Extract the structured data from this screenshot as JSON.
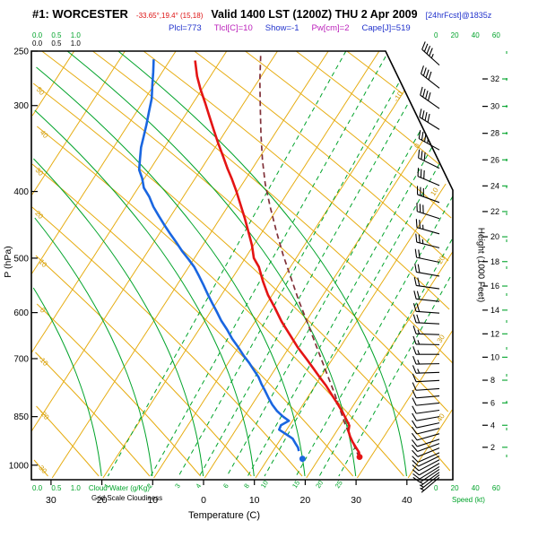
{
  "header": {
    "station": "#1: WORCESTER",
    "coords": "-33.65°,19.4° (15,18)",
    "valid": "Valid 1400 LST (1200Z) THU 2 Apr 2009",
    "fcst": "[24hrFcst]@1835z",
    "indices": {
      "plcl": "Plcl=773",
      "tlcl": "Tlcl[C]=10",
      "show": "Show=-1",
      "pw": "Pw[cm]=2",
      "cape": "Cape[J]=519"
    }
  },
  "scales": {
    "cloud_ticks": "0.0 0.5 1.0",
    "cloud_green_label": "Cloud Water (g/Kg)",
    "cloud_black_label": "Grid Scale Cloudiness",
    "speed_ticks": "0 20 40 60"
  },
  "chart_data": {
    "type": "skewt-logp-sounding",
    "title": "#1: WORCESTER",
    "valid": "Valid 1400 LST (1200Z) THU 2 Apr 2009",
    "indices": {
      "Plcl_hPa": 773,
      "Tlcl_C": 10,
      "Showalter": -1,
      "Pw_cm": 2,
      "Cape_J": 519
    },
    "pressure_axis": {
      "label": "P (hPa)",
      "range": [
        1050,
        250
      ],
      "ticks": [
        250,
        300,
        400,
        500,
        600,
        700,
        850,
        1000
      ]
    },
    "temperature_axis": {
      "label": "Temperature (C)",
      "ticks": [
        [
          -30,
          "30"
        ],
        [
          -20,
          "20"
        ],
        [
          -10,
          "10"
        ],
        [
          0,
          "0"
        ],
        [
          10,
          "10"
        ],
        [
          20,
          "20"
        ],
        [
          30,
          "30"
        ],
        [
          40,
          "40"
        ]
      ]
    },
    "height_axis": {
      "label": "Height (1000 Feet)",
      "ticks": [
        2,
        4,
        6,
        8,
        10,
        12,
        14,
        16,
        18,
        20,
        22,
        24,
        26,
        28,
        30,
        32
      ]
    },
    "speed_axis": {
      "label": "Speed (kt)",
      "ticks": [
        0,
        20,
        40,
        60
      ]
    },
    "temperature_profile": [
      [
        258,
        -55.0
      ],
      [
        272,
        -52.6
      ],
      [
        284,
        -50.3
      ],
      [
        297,
        -47.7
      ],
      [
        311,
        -45.1
      ],
      [
        325,
        -42.6
      ],
      [
        340,
        -40.0
      ],
      [
        355,
        -37.4
      ],
      [
        371,
        -34.8
      ],
      [
        383,
        -32.8
      ],
      [
        400,
        -30.2
      ],
      [
        419,
        -27.6
      ],
      [
        438,
        -25.1
      ],
      [
        458,
        -22.7
      ],
      [
        479,
        -20.3
      ],
      [
        500,
        -18.3
      ],
      [
        515,
        -16.2
      ],
      [
        540,
        -13.6
      ],
      [
        565,
        -10.9
      ],
      [
        590,
        -7.9
      ],
      [
        618,
        -4.8
      ],
      [
        646,
        -1.5
      ],
      [
        675,
        1.8
      ],
      [
        700,
        4.8
      ],
      [
        722,
        7.3
      ],
      [
        744,
        9.7
      ],
      [
        766,
        12.1
      ],
      [
        792,
        14.6
      ],
      [
        813,
        16.6
      ],
      [
        838,
        18.8
      ],
      [
        858,
        20.4
      ],
      [
        876,
        21.8
      ],
      [
        892,
        22.3
      ],
      [
        908,
        23.3
      ],
      [
        925,
        24.5
      ],
      [
        944,
        26.0
      ],
      [
        958,
        27.1
      ],
      [
        973,
        27.8
      ]
    ],
    "dewpoint_profile": [
      [
        257,
        -63.3
      ],
      [
        268,
        -61.8
      ],
      [
        280,
        -60.3
      ],
      [
        293,
        -58.7
      ],
      [
        307,
        -57.5
      ],
      [
        320,
        -56.4
      ],
      [
        332,
        -55.5
      ],
      [
        345,
        -54.6
      ],
      [
        359,
        -53.3
      ],
      [
        372,
        -52.1
      ],
      [
        383,
        -50.4
      ],
      [
        395,
        -48.9
      ],
      [
        407,
        -46.7
      ],
      [
        421,
        -44.6
      ],
      [
        434,
        -42.4
      ],
      [
        447,
        -40.2
      ],
      [
        460,
        -38.0
      ],
      [
        474,
        -35.6
      ],
      [
        489,
        -33.2
      ],
      [
        502,
        -31.0
      ],
      [
        515,
        -28.9
      ],
      [
        531,
        -26.8
      ],
      [
        547,
        -24.8
      ],
      [
        564,
        -22.8
      ],
      [
        581,
        -20.8
      ],
      [
        598,
        -18.8
      ],
      [
        617,
        -16.7
      ],
      [
        635,
        -14.5
      ],
      [
        655,
        -12.3
      ],
      [
        674,
        -10.0
      ],
      [
        693,
        -7.9
      ],
      [
        710,
        -5.9
      ],
      [
        727,
        -4.1
      ],
      [
        744,
        -2.3
      ],
      [
        763,
        -0.7
      ],
      [
        781,
        0.9
      ],
      [
        800,
        2.5
      ],
      [
        817,
        4.0
      ],
      [
        834,
        5.7
      ],
      [
        850,
        7.6
      ],
      [
        862,
        9.3
      ],
      [
        875,
        8.3
      ],
      [
        888,
        8.5
      ],
      [
        902,
        10.5
      ],
      [
        915,
        12.3
      ],
      [
        929,
        13.4
      ],
      [
        943,
        14.5
      ],
      [
        954,
        15.1
      ]
    ],
    "parcel_path": [
      [
        254,
        -42.7
      ],
      [
        276,
        -39.7
      ],
      [
        302,
        -36.2
      ],
      [
        330,
        -32.7
      ],
      [
        360,
        -29.1
      ],
      [
        390,
        -25.5
      ],
      [
        422,
        -21.5
      ],
      [
        457,
        -17.3
      ],
      [
        496,
        -12.8
      ],
      [
        535,
        -8.4
      ],
      [
        577,
        -4.0
      ],
      [
        621,
        0.5
      ],
      [
        668,
        4.9
      ],
      [
        721,
        9.5
      ],
      [
        788,
        14.9
      ],
      [
        875,
        21.0
      ],
      [
        975,
        27.8
      ]
    ],
    "surface_markers": {
      "temperature": [
        973,
        27.8
      ],
      "dewpoint": [
        979,
        16.8
      ]
    },
    "winds": [
      [
        1042,
        230,
        5
      ],
      [
        1033,
        232,
        5
      ],
      [
        1024,
        234,
        5
      ],
      [
        1014,
        236,
        8
      ],
      [
        1005,
        238,
        8
      ],
      [
        994,
        240,
        10
      ],
      [
        982,
        242,
        10
      ],
      [
        970,
        244,
        10
      ],
      [
        959,
        246,
        10
      ],
      [
        944,
        248,
        10
      ],
      [
        930,
        250,
        10
      ],
      [
        917,
        252,
        10
      ],
      [
        900,
        254,
        10
      ],
      [
        884,
        256,
        10
      ],
      [
        868,
        258,
        10
      ],
      [
        850,
        260,
        10
      ],
      [
        832,
        262,
        10
      ],
      [
        812,
        264,
        12
      ],
      [
        793,
        265,
        12
      ],
      [
        774,
        266,
        12
      ],
      [
        753,
        267,
        12
      ],
      [
        733,
        268,
        15
      ],
      [
        712,
        269,
        15
      ],
      [
        690,
        270,
        15
      ],
      [
        668,
        271,
        15
      ],
      [
        646,
        272,
        15
      ],
      [
        623,
        273,
        18
      ],
      [
        601,
        274,
        18
      ],
      [
        578,
        276,
        20
      ],
      [
        554,
        278,
        20
      ],
      [
        531,
        280,
        20
      ],
      [
        507,
        282,
        22
      ],
      [
        483,
        284,
        25
      ],
      [
        461,
        286,
        25
      ],
      [
        438,
        288,
        28
      ],
      [
        415,
        290,
        30
      ],
      [
        392,
        293,
        30
      ],
      [
        370,
        296,
        32
      ],
      [
        348,
        299,
        35
      ],
      [
        325,
        302,
        38
      ],
      [
        303,
        305,
        40
      ],
      [
        283,
        308,
        42
      ],
      [
        262,
        312,
        45
      ]
    ],
    "background": {
      "isotherms_c": [
        -90,
        -80,
        -70,
        -60,
        -50,
        -40,
        -30,
        -20,
        -10,
        0,
        10,
        20,
        30,
        40
      ],
      "dry_adiabats_c": [
        -30,
        -20,
        -10,
        0,
        10,
        20,
        30,
        40,
        50,
        60,
        70,
        80,
        90,
        100,
        110,
        120,
        130
      ],
      "moist_adiabats_c": [
        -20,
        -10,
        0,
        10,
        20,
        30,
        40
      ],
      "mixing_ratio_gkg": [
        [
          1,
          -19.2
        ],
        [
          2,
          -10.8
        ],
        [
          3,
          -5.3
        ],
        [
          4,
          -1.2
        ],
        [
          6,
          4.2
        ],
        [
          8,
          8.3
        ],
        [
          10,
          11.6
        ],
        [
          15,
          17.8
        ],
        [
          20,
          22.4
        ],
        [
          25,
          26.2
        ]
      ]
    }
  }
}
